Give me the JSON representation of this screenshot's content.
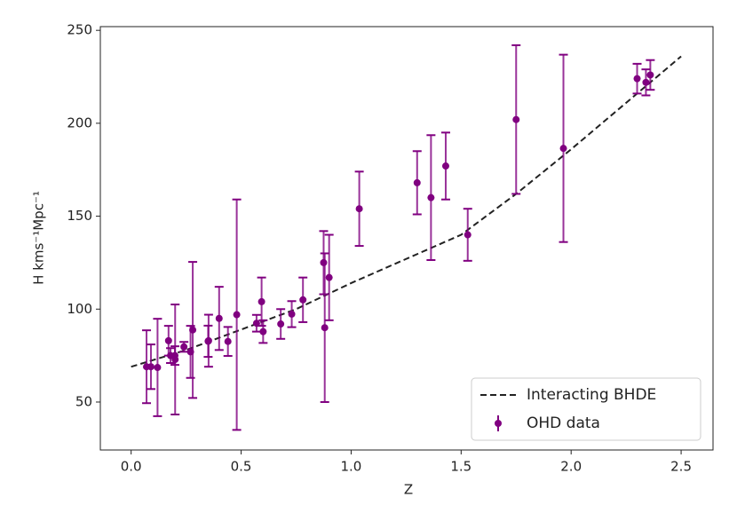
{
  "chart_data": {
    "type": "errorbar",
    "xlabel": "Z",
    "ylabel": "H kms⁻¹Mpc⁻¹",
    "xlim": [
      -0.14,
      2.645
    ],
    "ylim": [
      24.2,
      252
    ],
    "xticks": [
      {
        "value": 0,
        "label": "0.0"
      },
      0.5,
      {
        "value": 1,
        "label": "1.0"
      },
      1.5,
      {
        "value": 2,
        "label": "2.0"
      },
      2.5
    ],
    "yticks": [
      50,
      100,
      150,
      200,
      250
    ],
    "legend": "lower right",
    "series": [
      {
        "name": "Interacting BHDE",
        "kind": "line",
        "color": "#222222",
        "dashed": true,
        "x": [
          0,
          0.25,
          0.5,
          0.75,
          1.0,
          1.25,
          1.5,
          1.75,
          2.0,
          2.25,
          2.5
        ],
        "y": [
          69,
          78,
          89,
          100,
          114,
          127,
          140,
          162,
          186,
          211,
          236
        ]
      },
      {
        "name": "OHD data",
        "kind": "errorbar",
        "color": "#800080",
        "x": [
          0.07,
          0.09,
          0.12,
          0.17,
          0.179,
          0.199,
          0.2,
          0.24,
          0.27,
          0.28,
          0.35,
          0.352,
          0.4,
          0.44,
          0.48,
          0.57,
          0.593,
          0.6,
          0.68,
          0.73,
          0.781,
          0.875,
          0.88,
          0.9,
          1.037,
          1.3,
          1.363,
          1.43,
          1.53,
          1.75,
          1.965,
          2.3,
          2.34,
          2.36
        ],
        "y": [
          69,
          69,
          68.6,
          83,
          75,
          75,
          72.9,
          79.7,
          77,
          88.8,
          82.7,
          83,
          95,
          82.6,
          97,
          92.4,
          104,
          87.9,
          92,
          97.3,
          105,
          125,
          90,
          117,
          154,
          168,
          160,
          177,
          140,
          202,
          186.5,
          224,
          222,
          226
        ],
        "yerr": [
          19.6,
          12,
          26.2,
          8,
          4,
          5,
          29.6,
          2.65,
          14,
          36.6,
          8.4,
          14,
          17,
          7.8,
          62,
          4.5,
          13,
          6.1,
          8,
          7,
          12,
          17,
          40,
          23,
          20,
          17,
          33.6,
          18,
          14,
          40,
          50.4,
          8,
          7,
          8
        ]
      }
    ]
  }
}
